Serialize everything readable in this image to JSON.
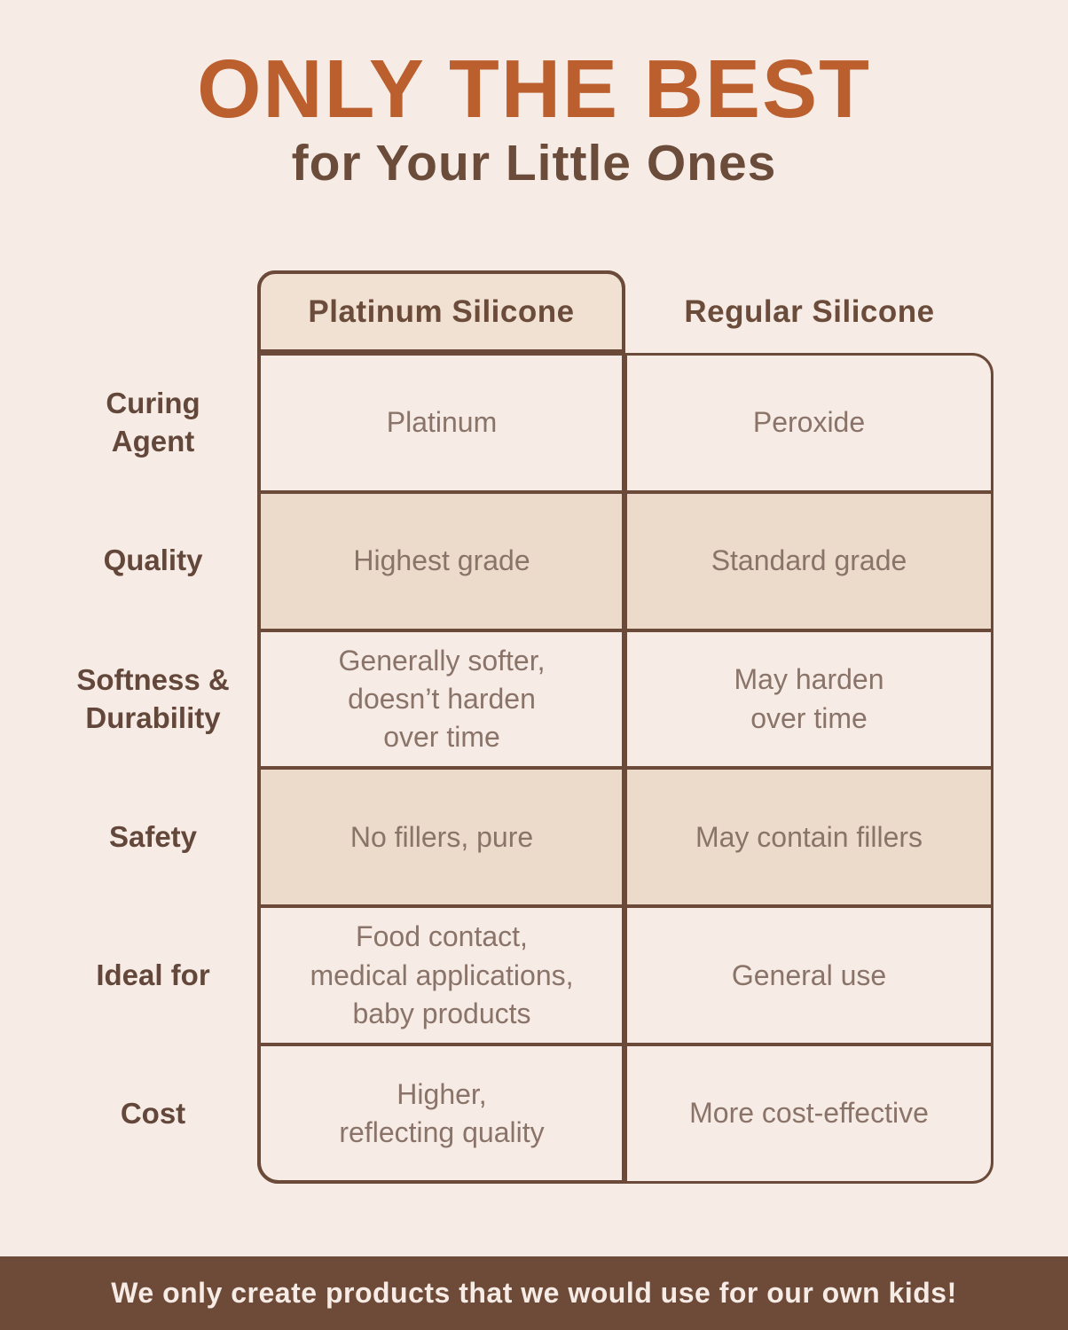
{
  "page": {
    "title": "ONLY THE BEST",
    "subtitle": "for Your Little Ones"
  },
  "comparison_table": {
    "column_headers": [
      "Platinum Silicone",
      "Regular Silicone"
    ],
    "rows": [
      {
        "label": "Curing\nAgent",
        "platinum": "Platinum",
        "regular": "Peroxide",
        "shaded": false
      },
      {
        "label": "Quality",
        "platinum": "Highest grade",
        "regular": "Standard grade",
        "shaded": true
      },
      {
        "label": "Softness &\nDurability",
        "platinum": "Generally softer,\ndoesn’t harden\nover time",
        "regular": "May harden\nover time",
        "shaded": false
      },
      {
        "label": "Safety",
        "platinum": "No fillers, pure",
        "regular": "May contain fillers",
        "shaded": true
      },
      {
        "label": "Ideal for",
        "platinum": "Food contact,\nmedical applications,\nbaby products",
        "regular": "General use",
        "shaded": false
      },
      {
        "label": "Cost",
        "platinum": "Higher,\nreflecting quality",
        "regular": "More cost-effective",
        "shaded": false
      }
    ]
  },
  "footer": {
    "text": "We only create products that we would use for our own kids!"
  },
  "colors": {
    "background_cream": "#f6ece5",
    "title_orange": "#bb5f2e",
    "dark_brown_text": "#63473a",
    "header_text_brown": "#6b4c3b",
    "cell_text_brown": "#8a7368",
    "border_brown": "#6b4a39",
    "shaded_cell_tan": "#ecdbcb",
    "header_cell_tan": "#f0e1d3",
    "footer_bar_brown": "#6e4a39",
    "footer_text_cream": "#f6ece5"
  }
}
